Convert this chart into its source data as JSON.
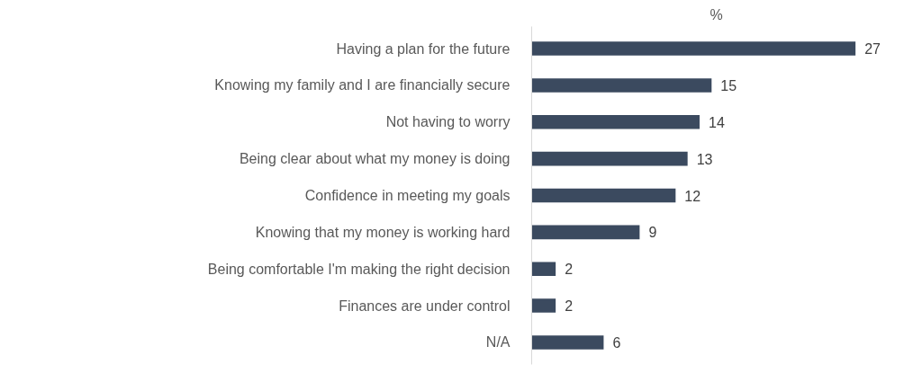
{
  "chart_data": {
    "type": "bar",
    "orientation": "horizontal",
    "title": "%",
    "categories": [
      "Having a plan for the future",
      "Knowing my family and I are financially secure",
      "Not having to worry",
      "Being clear about what my money is doing",
      "Confidence in meeting my goals",
      "Knowing that my money is working hard",
      "Being comfortable I'm making the right decision",
      "Finances are under control",
      "N/A"
    ],
    "values": [
      27,
      15,
      14,
      13,
      12,
      9,
      2,
      2,
      6
    ],
    "color": "#3b4a5f",
    "data_labels": true
  }
}
